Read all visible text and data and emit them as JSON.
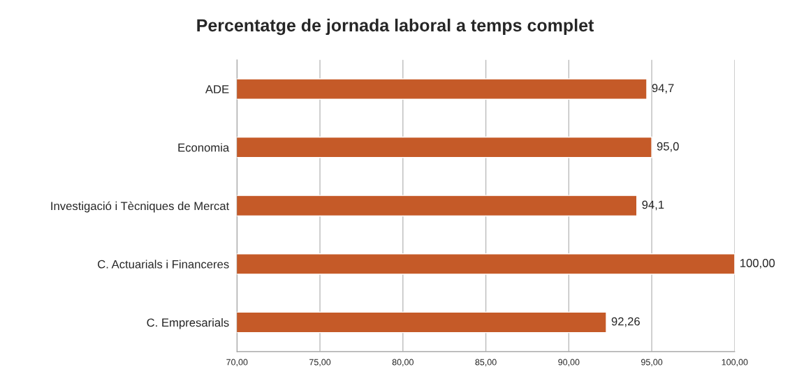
{
  "chart_data": {
    "type": "bar",
    "orientation": "horizontal",
    "title": "Percentatge de jornada laboral a temps complet",
    "categories": [
      "ADE",
      "Economia",
      "Investigació i Tècniques de Mercat",
      "C. Actuarials i Financeres",
      "C. Empresarials"
    ],
    "values": [
      94.7,
      95.0,
      94.1,
      100.0,
      92.26
    ],
    "value_labels": [
      "94,7",
      "95,0",
      "94,1",
      "100,00",
      "92,26"
    ],
    "color": "#c55a28",
    "xlim": [
      70,
      100
    ],
    "xticks": [
      {
        "value": 70,
        "label": "70,00"
      },
      {
        "value": 75,
        "label": "75,00"
      },
      {
        "value": 80,
        "label": "80,00"
      },
      {
        "value": 85,
        "label": "85,00"
      },
      {
        "value": 90,
        "label": "90,00"
      },
      {
        "value": 95,
        "label": "95,00"
      },
      {
        "value": 100,
        "label": "100,00"
      }
    ],
    "grid": "x",
    "legend": false
  }
}
